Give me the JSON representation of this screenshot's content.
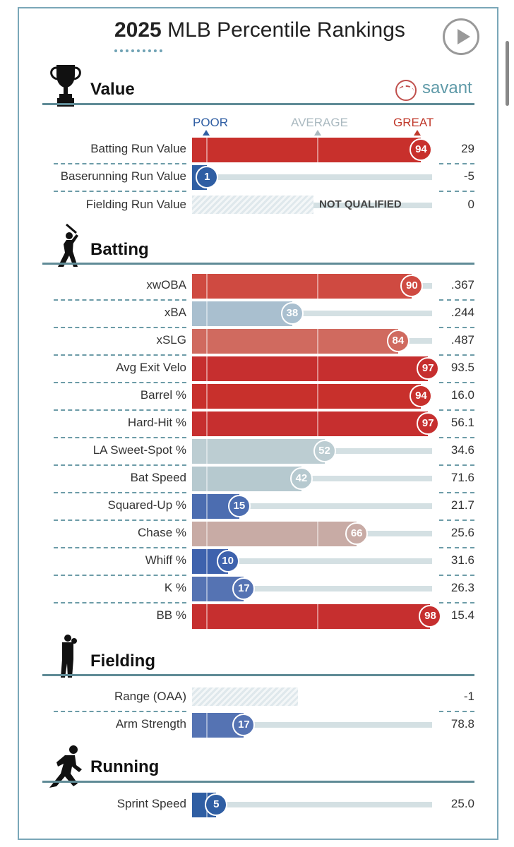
{
  "header": {
    "year": "2025",
    "title": "MLB Percentile Rankings"
  },
  "brand": {
    "name": "savant"
  },
  "scale": {
    "poor": "POOR",
    "average": "AVERAGE",
    "great": "GREAT",
    "colors": {
      "poor": "#2f5ea3",
      "average": "#aab9c0",
      "great": "#c0392b"
    }
  },
  "sections": [
    {
      "key": "value",
      "title": "Value",
      "icon": "trophy-icon"
    },
    {
      "key": "batting",
      "title": "Batting",
      "icon": "batter-icon"
    },
    {
      "key": "fielding",
      "title": "Fielding",
      "icon": "fielder-icon"
    },
    {
      "key": "running",
      "title": "Running",
      "icon": "runner-icon"
    }
  ],
  "metrics": [
    {
      "section": "value",
      "label": "Batting Run Value",
      "percentile": 94,
      "value": "29",
      "color": "#c8302c"
    },
    {
      "section": "value",
      "label": "Baserunning Run Value",
      "percentile": 1,
      "value": "-5",
      "color": "#2f5ea3"
    },
    {
      "section": "value",
      "label": "Fielding Run Value",
      "percentile": null,
      "value": "0",
      "status": "NOT QUALIFIED"
    },
    {
      "section": "batting",
      "label": "xwOBA",
      "percentile": 90,
      "value": ".367",
      "color": "#cf4a41"
    },
    {
      "section": "batting",
      "label": "xBA",
      "percentile": 38,
      "value": ".244",
      "color": "#a9bfcf"
    },
    {
      "section": "batting",
      "label": "xSLG",
      "percentile": 84,
      "value": ".487",
      "color": "#d06a5f"
    },
    {
      "section": "batting",
      "label": "Avg Exit Velo",
      "percentile": 97,
      "value": "93.5",
      "color": "#c62f2f"
    },
    {
      "section": "batting",
      "label": "Barrel %",
      "percentile": 94,
      "value": "16.0",
      "color": "#c8302c"
    },
    {
      "section": "batting",
      "label": "Hard-Hit %",
      "percentile": 97,
      "value": "56.1",
      "color": "#c62f2f"
    },
    {
      "section": "batting",
      "label": "LA Sweet-Spot %",
      "percentile": 52,
      "value": "34.6",
      "color": "#bccdd2"
    },
    {
      "section": "batting",
      "label": "Bat Speed",
      "percentile": 42,
      "value": "71.6",
      "color": "#b6c9cf"
    },
    {
      "section": "batting",
      "label": "Squared-Up %",
      "percentile": 15,
      "value": "21.7",
      "color": "#4c6db0"
    },
    {
      "section": "batting",
      "label": "Chase %",
      "percentile": 66,
      "value": "25.6",
      "color": "#c8aba5"
    },
    {
      "section": "batting",
      "label": "Whiff %",
      "percentile": 10,
      "value": "31.6",
      "color": "#3e62ad"
    },
    {
      "section": "batting",
      "label": "K %",
      "percentile": 17,
      "value": "26.3",
      "color": "#5573b3"
    },
    {
      "section": "batting",
      "label": "BB %",
      "percentile": 98,
      "value": "15.4",
      "color": "#c62f2f"
    },
    {
      "section": "fielding",
      "label": "Range (OAA)",
      "percentile": null,
      "value": "-1",
      "status": ""
    },
    {
      "section": "fielding",
      "label": "Arm Strength",
      "percentile": 17,
      "value": "78.8",
      "color": "#5573b3"
    },
    {
      "section": "running",
      "label": "Sprint Speed",
      "percentile": 5,
      "value": "25.0",
      "color": "#2f5ea3"
    }
  ]
}
